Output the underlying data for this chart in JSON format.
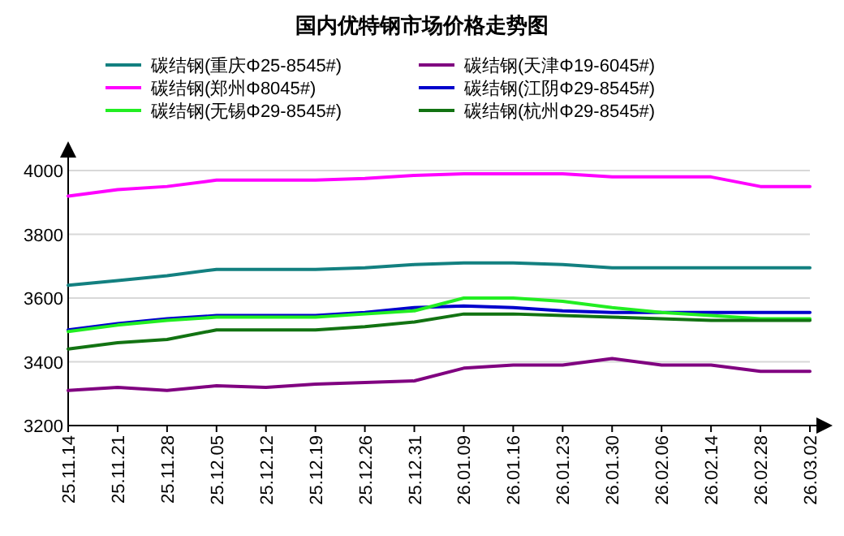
{
  "chart_data": {
    "type": "line",
    "title": "国内优特钢市场价格走势图",
    "categories": [
      "25.11.14",
      "25.11.21",
      "25.11.28",
      "25.12.05",
      "25.12.12",
      "25.12.19",
      "25.12.26",
      "25.12.31",
      "26.01.09",
      "26.01.16",
      "26.01.23",
      "26.01.30",
      "26.02.06",
      "26.02.14",
      "26.02.28",
      "26.03.02"
    ],
    "series": [
      {
        "name": "碳结钢(重庆Φ25-8545#)",
        "color": "#138080",
        "values": [
          3640,
          3655,
          3670,
          3690,
          3690,
          3690,
          3695,
          3705,
          3710,
          3710,
          3705,
          3695,
          3695,
          3695,
          3695,
          3695
        ]
      },
      {
        "name": "碳结钢(天津Φ19-6045#)",
        "color": "#800080",
        "values": [
          3310,
          3320,
          3310,
          3325,
          3320,
          3330,
          3335,
          3340,
          3380,
          3390,
          3390,
          3410,
          3390,
          3390,
          3370,
          3370
        ]
      },
      {
        "name": "碳结钢(郑州Φ8045#)",
        "color": "#ff00ff",
        "values": [
          3920,
          3940,
          3950,
          3970,
          3970,
          3970,
          3975,
          3985,
          3990,
          3990,
          3990,
          3980,
          3980,
          3980,
          3950,
          3950
        ]
      },
      {
        "name": "碳结钢(江阴Φ29-8545#)",
        "color": "#0000cc",
        "values": [
          3500,
          3520,
          3535,
          3545,
          3545,
          3545,
          3555,
          3570,
          3575,
          3570,
          3560,
          3555,
          3555,
          3555,
          3555,
          3555
        ]
      },
      {
        "name": "碳结钢(无锡Φ29-8545#)",
        "color": "#22ee22",
        "values": [
          3495,
          3515,
          3530,
          3540,
          3540,
          3540,
          3550,
          3560,
          3600,
          3600,
          3590,
          3570,
          3555,
          3545,
          3535,
          3535
        ]
      },
      {
        "name": "碳结钢(杭州Φ29-8545#)",
        "color": "#127312",
        "values": [
          3440,
          3460,
          3470,
          3500,
          3500,
          3500,
          3510,
          3525,
          3550,
          3550,
          3545,
          3540,
          3535,
          3530,
          3530,
          3530
        ]
      }
    ],
    "ylim": [
      3200,
      4000
    ],
    "yticks": [
      3200,
      3400,
      3600,
      3800,
      4000
    ],
    "grid": "y",
    "legend": "top",
    "marker": "none",
    "line_style": "solid"
  }
}
